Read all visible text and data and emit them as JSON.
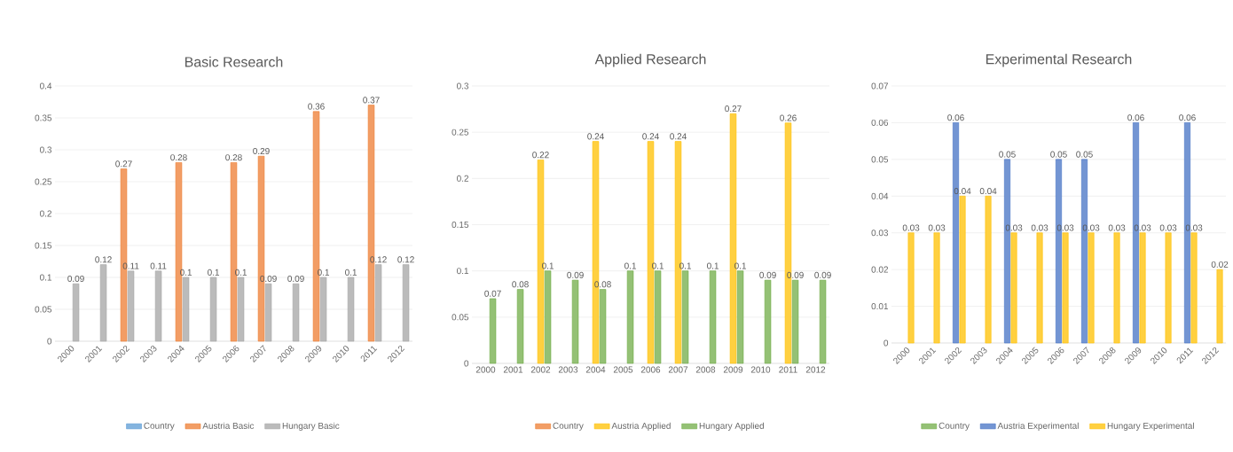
{
  "chart_data": [
    {
      "type": "bar",
      "title": "Basic Research",
      "categories": [
        "2000",
        "2001",
        "2002",
        "2003",
        "2004",
        "2005",
        "2006",
        "2007",
        "2008",
        "2009",
        "2010",
        "2011",
        "2012"
      ],
      "series": [
        {
          "name": "Country",
          "color": "#5b9bd5",
          "values": [
            null,
            null,
            null,
            null,
            null,
            null,
            null,
            null,
            null,
            null,
            null,
            null,
            null
          ]
        },
        {
          "name": "Austria Basic",
          "color": "#ed7d31",
          "values": [
            null,
            null,
            0.27,
            null,
            0.28,
            null,
            0.28,
            0.29,
            null,
            0.36,
            null,
            0.37,
            null
          ]
        },
        {
          "name": "Hungary Basic",
          "color": "#a5a5a5",
          "values": [
            0.09,
            0.12,
            0.11,
            0.11,
            0.1,
            0.1,
            0.1,
            0.09,
            0.09,
            0.1,
            0.1,
            0.12,
            0.12
          ]
        }
      ],
      "ylim": [
        0,
        0.4
      ],
      "yticks": [
        0,
        0.05,
        0.1,
        0.15,
        0.2,
        0.25,
        0.3,
        0.35,
        0.4
      ],
      "grid": "y",
      "legend": "bottom",
      "data_labels": true
    },
    {
      "type": "bar",
      "title": "Applied Research",
      "categories": [
        "2000",
        "2001",
        "2002",
        "2003",
        "2004",
        "2005",
        "2006",
        "2007",
        "2008",
        "2009",
        "2010",
        "2011",
        "2012"
      ],
      "series": [
        {
          "name": "Country",
          "color": "#ed7d31",
          "values": [
            null,
            null,
            null,
            null,
            null,
            null,
            null,
            null,
            null,
            null,
            null,
            null,
            null
          ]
        },
        {
          "name": "Austria Applied",
          "color": "#ffc000",
          "values": [
            null,
            null,
            0.22,
            null,
            0.24,
            null,
            0.24,
            0.24,
            null,
            0.27,
            null,
            0.26,
            null
          ]
        },
        {
          "name": "Hungary Applied",
          "color": "#70ad47",
          "values": [
            0.07,
            0.08,
            0.1,
            0.09,
            0.08,
            0.1,
            0.1,
            0.1,
            0.1,
            0.1,
            0.09,
            0.09,
            0.09
          ]
        }
      ],
      "ylim": [
        0,
        0.3
      ],
      "yticks": [
        0,
        0.05,
        0.1,
        0.15,
        0.2,
        0.25,
        0.3
      ],
      "grid": "y",
      "legend": "bottom",
      "data_labels": true
    },
    {
      "type": "bar",
      "title": "Experimental Research",
      "categories": [
        "2000",
        "2001",
        "2002",
        "2003",
        "2004",
        "2005",
        "2006",
        "2007",
        "2008",
        "2009",
        "2010",
        "2011",
        "2012"
      ],
      "series": [
        {
          "name": "Country",
          "color": "#70ad47",
          "values": [
            null,
            null,
            null,
            null,
            null,
            null,
            null,
            null,
            null,
            null,
            null,
            null,
            null
          ]
        },
        {
          "name": "Austria Experimental",
          "color": "#4472c4",
          "values": [
            null,
            null,
            0.06,
            null,
            0.05,
            null,
            0.05,
            0.05,
            null,
            0.06,
            null,
            0.06,
            null
          ]
        },
        {
          "name": "Hungary Experimental",
          "color": "#ffc000",
          "values": [
            0.03,
            0.03,
            0.04,
            0.04,
            0.03,
            0.03,
            0.03,
            0.03,
            0.03,
            0.03,
            0.03,
            0.03,
            0.02
          ]
        }
      ],
      "ylim": [
        0,
        0.07
      ],
      "yticks": [
        0,
        0.01,
        0.02,
        0.03,
        0.04,
        0.05,
        0.06,
        0.07
      ],
      "grid": "y",
      "legend": "bottom",
      "data_labels": true
    }
  ]
}
